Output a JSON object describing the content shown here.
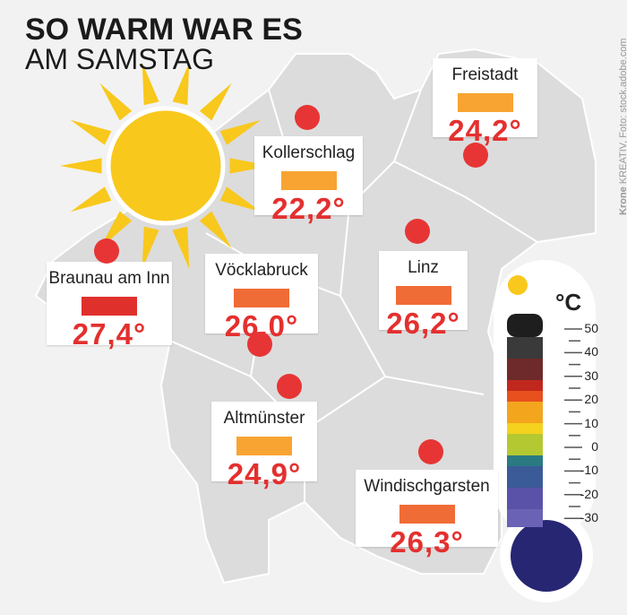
{
  "header": {
    "title": "SO WARM WAR ES",
    "subtitle": "AM SAMSTAG"
  },
  "locations": [
    {
      "name": "Braunau am Inn",
      "temperature": "27,4°"
    },
    {
      "name": "Vöcklabruck",
      "temperature": "26,0°"
    },
    {
      "name": "Kollerschlag",
      "temperature": "22,2°"
    },
    {
      "name": "Freistadt",
      "temperature": "24,2°"
    },
    {
      "name": "Linz",
      "temperature": "26,2°"
    },
    {
      "name": "Altmünster",
      "temperature": "24,9°"
    },
    {
      "name": "Windischgarsten",
      "temperature": "26,3°"
    }
  ],
  "thermometer": {
    "unit": "°C",
    "scale": [
      "50",
      "40",
      "30",
      "20",
      "10",
      "0",
      "-10",
      "-20",
      "-30"
    ]
  },
  "credit": {
    "brand": "Krone",
    "text": "KREATIV, Foto: stock.adobe.com"
  }
}
